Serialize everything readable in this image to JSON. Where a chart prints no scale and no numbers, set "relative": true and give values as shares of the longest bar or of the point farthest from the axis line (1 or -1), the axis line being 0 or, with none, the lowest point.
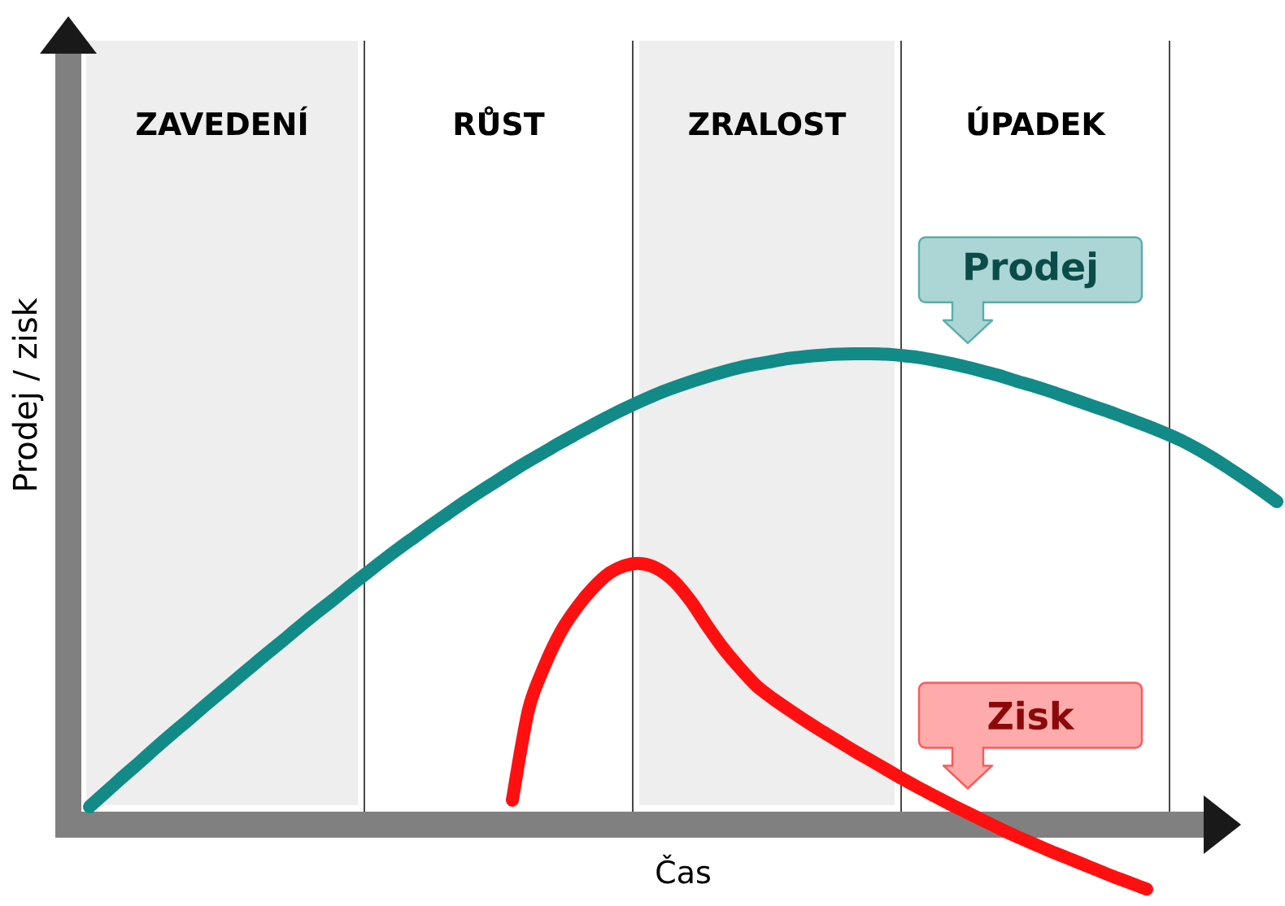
{
  "chart_data": {
    "type": "line",
    "relative": true,
    "xlabel": "Čas",
    "ylabel": "Prodej / zisk",
    "legend": "right",
    "annotations": [
      "ZAVEDENÍ",
      "RŮST",
      "ZRALOST",
      "ÚPADEK"
    ],
    "categories": [
      null,
      null,
      null,
      null,
      null,
      null,
      null,
      null,
      null,
      null,
      null,
      null,
      null,
      null,
      null,
      null,
      null,
      null,
      null,
      null,
      null,
      null,
      null,
      null,
      null,
      null,
      null,
      null,
      null,
      null,
      null,
      null,
      null,
      null,
      null,
      null,
      null,
      null,
      null,
      null,
      null,
      null,
      null,
      null,
      null,
      null,
      null,
      null,
      null,
      null,
      null,
      null,
      null,
      null,
      null,
      null,
      null,
      null,
      null,
      null,
      null,
      null,
      null,
      null,
      null,
      null,
      null,
      null,
      null,
      null,
      null,
      null,
      null,
      null
    ],
    "series": [
      {
        "name": "Prodej",
        "color": "#128a87",
        "values": [
          0.038,
          0.069,
          0.1,
          0.13,
          0.161,
          0.191,
          0.22,
          0.25,
          0.279,
          0.308,
          0.337,
          0.366,
          0.394,
          0.423,
          0.451,
          0.478,
          0.506,
          0.533,
          0.56,
          0.586,
          0.611,
          0.636,
          0.66,
          0.684,
          0.707,
          0.729,
          0.751,
          0.772,
          0.792,
          0.812,
          0.831,
          0.85,
          0.868,
          0.885,
          0.901,
          0.916,
          0.929,
          0.941,
          0.952,
          0.962,
          0.971,
          0.978,
          0.984,
          0.99,
          0.994,
          0.997,
          0.999,
          1,
          1,
          0.999,
          0.996,
          0.992,
          0.986,
          0.979,
          0.971,
          0.962,
          0.953,
          0.942,
          0.932,
          0.921,
          0.909,
          0.897,
          0.885,
          0.873,
          0.86,
          0.847,
          0.833,
          0.818,
          0.8,
          0.78,
          0.758,
          0.735,
          0.711,
          0.686
        ]
      },
      {
        "name": "Zisk",
        "color": "#ff1010",
        "values": [
          null,
          null,
          null,
          null,
          null,
          null,
          null,
          null,
          null,
          null,
          null,
          null,
          null,
          null,
          null,
          null,
          null,
          null,
          null,
          null,
          null,
          null,
          null,
          null,
          null,
          null,
          0.052,
          0.245,
          0.339,
          0.411,
          0.463,
          0.504,
          0.535,
          0.551,
          0.554,
          0.542,
          0.515,
          0.473,
          0.421,
          0.373,
          0.332,
          0.295,
          0.268,
          0.244,
          0.221,
          0.199,
          0.178,
          0.157,
          0.137,
          0.117,
          0.097,
          0.078,
          0.06,
          0.042,
          0.025,
          0.008,
          -0.009,
          -0.025,
          -0.04,
          -0.055,
          -0.069,
          -0.083,
          -0.097,
          -0.111,
          -0.124,
          -0.137,
          null,
          null,
          null,
          null,
          null,
          null,
          null,
          null
        ]
      }
    ]
  }
}
